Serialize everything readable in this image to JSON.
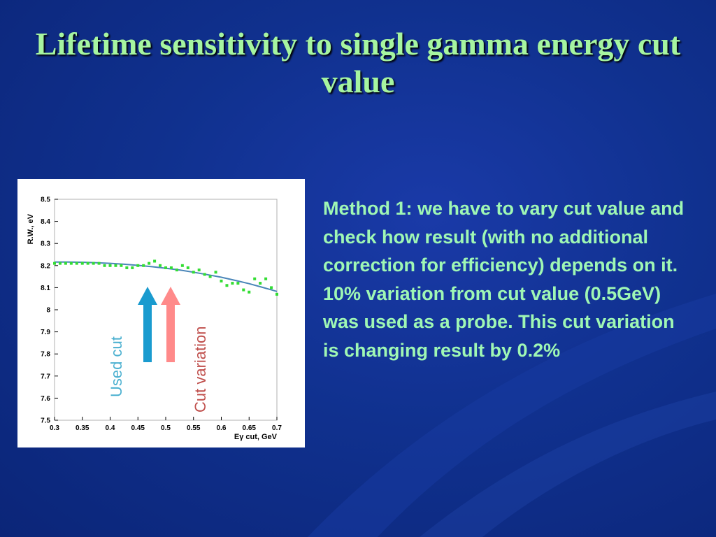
{
  "slide": {
    "title": "Lifetime sensitivity to single gamma energy cut value",
    "body": "Method 1: we have to vary cut value and check how result (with no additional correction for efficiency) depends on it. 10% variation from cut value (0.5GeV) was used as a probe. This cut variation is changing result by 0.2%"
  },
  "colors": {
    "title": "#a6f5a0",
    "text": "#9ff7b4",
    "points": "#33dd33",
    "fit": "#4a86b8",
    "used_arrow": "#1a9bcf",
    "variation_arrow": "#ff8a8a",
    "used_label": "#4bb0d0",
    "variation_label": "#c0504d"
  },
  "chart_data": {
    "type": "scatter",
    "xlabel": "Eγ cut, GeV",
    "ylabel": "R.W., eV",
    "xlim": [
      0.3,
      0.7
    ],
    "ylim": [
      7.5,
      8.5
    ],
    "xticks": [
      "0.3",
      "0.35",
      "0.4",
      "0.45",
      "0.5",
      "0.55",
      "0.6",
      "0.65",
      "0.7"
    ],
    "yticks": [
      "7.5",
      "7.6",
      "7.7",
      "7.8",
      "7.9",
      "8",
      "8.1",
      "8.2",
      "8.3",
      "8.4",
      "8.5"
    ],
    "series": [
      {
        "kind": "points",
        "x": [
          0.3,
          0.31,
          0.32,
          0.33,
          0.34,
          0.35,
          0.36,
          0.37,
          0.38,
          0.39,
          0.4,
          0.41,
          0.42,
          0.43,
          0.44,
          0.45,
          0.46,
          0.47,
          0.48,
          0.49,
          0.5,
          0.51,
          0.52,
          0.53,
          0.54,
          0.55,
          0.56,
          0.57,
          0.58,
          0.59,
          0.6,
          0.61,
          0.62,
          0.63,
          0.64,
          0.65,
          0.66,
          0.67,
          0.68,
          0.69,
          0.7
        ],
        "y": [
          8.21,
          8.21,
          8.21,
          8.21,
          8.21,
          8.21,
          8.21,
          8.21,
          8.21,
          8.2,
          8.2,
          8.2,
          8.2,
          8.19,
          8.19,
          8.2,
          8.2,
          8.21,
          8.22,
          8.2,
          8.19,
          8.19,
          8.18,
          8.2,
          8.19,
          8.17,
          8.18,
          8.16,
          8.15,
          8.17,
          8.13,
          8.11,
          8.12,
          8.12,
          8.09,
          8.08,
          8.14,
          8.12,
          8.14,
          8.1,
          8.07
        ]
      },
      {
        "kind": "fit",
        "x": [
          0.3,
          0.325,
          0.35,
          0.375,
          0.4,
          0.425,
          0.45,
          0.475,
          0.5,
          0.525,
          0.55,
          0.575,
          0.6,
          0.625,
          0.65,
          0.675,
          0.7
        ],
        "y": [
          8.216,
          8.216,
          8.215,
          8.213,
          8.21,
          8.206,
          8.201,
          8.195,
          8.188,
          8.18,
          8.17,
          8.159,
          8.147,
          8.133,
          8.118,
          8.101,
          8.083
        ]
      }
    ],
    "annotations": [
      "Used cut",
      "Cut variation"
    ]
  }
}
